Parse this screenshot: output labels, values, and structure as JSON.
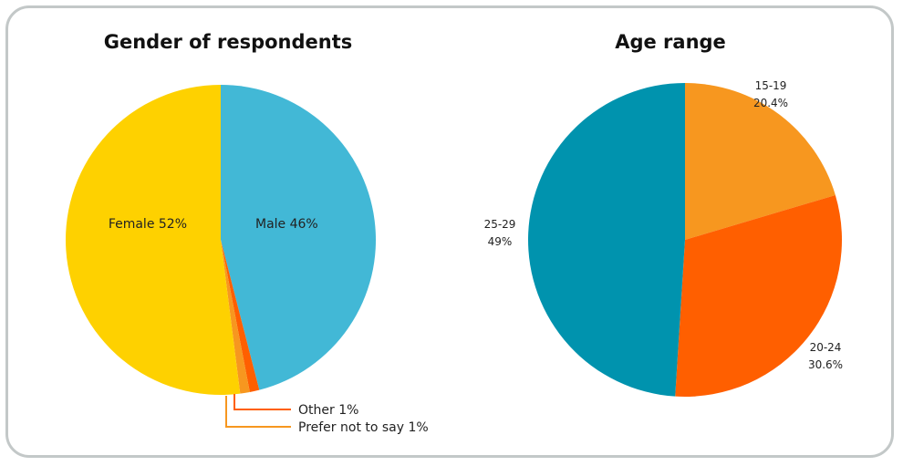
{
  "chart_data": [
    {
      "type": "pie",
      "title": "Gender of respondents",
      "slices": [
        {
          "label": "Male 46%",
          "value": 46,
          "color": "#42b8d6"
        },
        {
          "label": "Other 1%",
          "value": 1,
          "color": "#ff5f00"
        },
        {
          "label": "Prefer not to say 1%",
          "value": 1,
          "color": "#f7971f"
        },
        {
          "label": "Female 52%",
          "value": 52,
          "color": "#fed100"
        }
      ]
    },
    {
      "type": "pie",
      "title": "Age range",
      "slices": [
        {
          "label": "15-19",
          "value_label": "20.4%",
          "value": 20.4,
          "color": "#f7971f"
        },
        {
          "label": "20-24",
          "value_label": "30.6%",
          "value": 30.6,
          "color": "#ff5f00"
        },
        {
          "label": "25-29",
          "value_label": "49%",
          "value": 49,
          "color": "#0093ae"
        }
      ]
    }
  ]
}
